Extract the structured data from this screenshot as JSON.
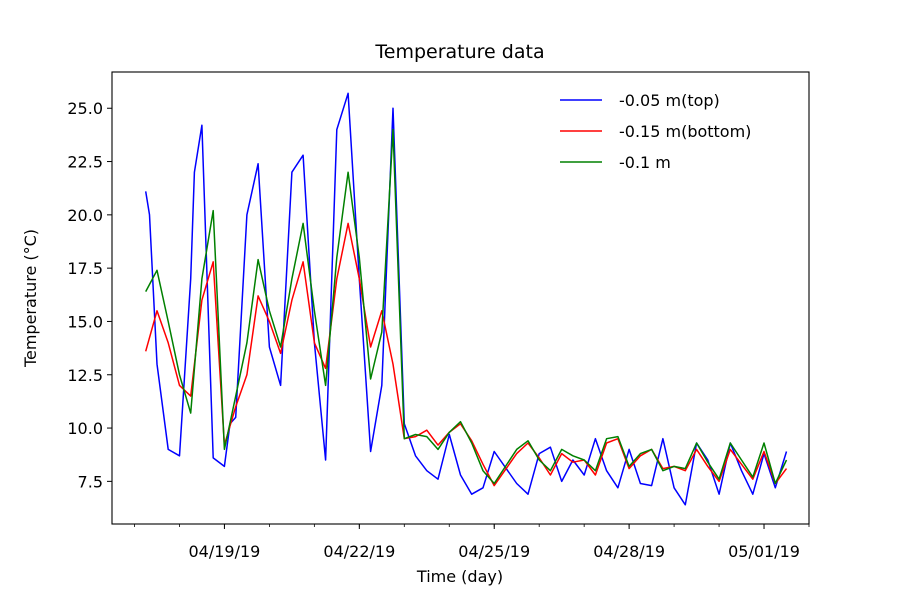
{
  "chart_data": {
    "type": "line",
    "title": "Temperature data",
    "xlabel": "Time (day)",
    "ylabel": "Temperature (°C)",
    "xlim": [
      "2019-04-16T12:00",
      "2019-05-02T00:00"
    ],
    "ylim": [
      5.5,
      26.7
    ],
    "x_ticks": [
      "04/19/19",
      "04/22/19",
      "04/25/19",
      "04/28/19",
      "05/01/19"
    ],
    "y_ticks": [
      "7.5",
      "10.0",
      "12.5",
      "15.0",
      "17.5",
      "20.0",
      "22.5",
      "25.0"
    ],
    "legend_position": "upper-right",
    "grid": false,
    "series": [
      {
        "name": "-0.05 m(top)",
        "color": "#0000ff",
        "x": [
          "2019-04-17T06:00",
          "2019-04-17T08:00",
          "2019-04-17T12:00",
          "2019-04-17T18:00",
          "2019-04-18T00:00",
          "2019-04-18T06:00",
          "2019-04-18T08:00",
          "2019-04-18T12:00",
          "2019-04-18T18:00",
          "2019-04-19T00:00",
          "2019-04-19T03:00",
          "2019-04-19T06:00",
          "2019-04-19T12:00",
          "2019-04-19T18:00",
          "2019-04-20T00:00",
          "2019-04-20T06:00",
          "2019-04-20T12:00",
          "2019-04-20T18:00",
          "2019-04-21T00:00",
          "2019-04-21T06:00",
          "2019-04-21T12:00",
          "2019-04-21T18:00",
          "2019-04-22T00:00",
          "2019-04-22T06:00",
          "2019-04-22T12:00",
          "2019-04-22T18:00",
          "2019-04-23T00:00",
          "2019-04-23T06:00",
          "2019-04-23T12:00",
          "2019-04-23T18:00",
          "2019-04-24T00:00",
          "2019-04-24T06:00",
          "2019-04-24T12:00",
          "2019-04-24T18:00",
          "2019-04-25T00:00",
          "2019-04-25T12:00",
          "2019-04-25T18:00",
          "2019-04-26T00:00",
          "2019-04-26T06:00",
          "2019-04-26T12:00",
          "2019-04-26T18:00",
          "2019-04-27T00:00",
          "2019-04-27T06:00",
          "2019-04-27T12:00",
          "2019-04-27T18:00",
          "2019-04-28T00:00",
          "2019-04-28T06:00",
          "2019-04-28T12:00",
          "2019-04-28T18:00",
          "2019-04-29T00:00",
          "2019-04-29T06:00",
          "2019-04-29T12:00",
          "2019-04-29T18:00",
          "2019-04-30T00:00",
          "2019-04-30T06:00",
          "2019-04-30T12:00",
          "2019-04-30T18:00",
          "2019-05-01T00:00",
          "2019-05-01T06:00",
          "2019-05-01T12:00"
        ],
        "values": [
          21.1,
          20.0,
          13.0,
          9.0,
          8.7,
          17.0,
          22.0,
          24.2,
          8.6,
          8.2,
          10.2,
          10.5,
          20.0,
          22.4,
          13.8,
          12.0,
          22.0,
          22.8,
          14.0,
          8.5,
          24.0,
          25.7,
          17.0,
          8.9,
          12.0,
          25.0,
          10.2,
          8.7,
          8.0,
          7.6,
          9.7,
          7.8,
          6.9,
          7.2,
          8.9,
          7.4,
          6.9,
          8.8,
          9.1,
          7.5,
          8.5,
          7.8,
          9.5,
          8.0,
          7.2,
          9.0,
          7.4,
          7.3,
          9.5,
          7.2,
          6.4,
          9.3,
          8.5,
          6.9,
          9.3,
          8.0,
          6.9,
          8.8,
          7.2,
          8.9
        ]
      },
      {
        "name": "-0.15 m(bottom)",
        "color": "#ff0000",
        "x": [
          "2019-04-17T06:00",
          "2019-04-17T12:00",
          "2019-04-17T18:00",
          "2019-04-18T00:00",
          "2019-04-18T06:00",
          "2019-04-18T12:00",
          "2019-04-18T18:00",
          "2019-04-19T00:00",
          "2019-04-19T06:00",
          "2019-04-19T12:00",
          "2019-04-19T18:00",
          "2019-04-20T00:00",
          "2019-04-20T06:00",
          "2019-04-20T12:00",
          "2019-04-20T18:00",
          "2019-04-21T00:00",
          "2019-04-21T06:00",
          "2019-04-21T12:00",
          "2019-04-21T18:00",
          "2019-04-22T00:00",
          "2019-04-22T06:00",
          "2019-04-22T12:00",
          "2019-04-22T18:00",
          "2019-04-23T00:00",
          "2019-04-23T06:00",
          "2019-04-23T12:00",
          "2019-04-23T18:00",
          "2019-04-24T00:00",
          "2019-04-24T06:00",
          "2019-04-24T12:00",
          "2019-04-24T18:00",
          "2019-04-25T00:00",
          "2019-04-25T12:00",
          "2019-04-25T18:00",
          "2019-04-26T00:00",
          "2019-04-26T06:00",
          "2019-04-26T12:00",
          "2019-04-26T18:00",
          "2019-04-27T00:00",
          "2019-04-27T06:00",
          "2019-04-27T12:00",
          "2019-04-27T18:00",
          "2019-04-28T00:00",
          "2019-04-28T06:00",
          "2019-04-28T12:00",
          "2019-04-28T18:00",
          "2019-04-29T00:00",
          "2019-04-29T06:00",
          "2019-04-29T12:00",
          "2019-04-29T18:00",
          "2019-04-30T00:00",
          "2019-04-30T06:00",
          "2019-04-30T12:00",
          "2019-04-30T18:00",
          "2019-05-01T00:00",
          "2019-05-01T06:00",
          "2019-05-01T12:00"
        ],
        "values": [
          13.6,
          15.5,
          14.0,
          12.0,
          11.5,
          16.0,
          17.8,
          9.2,
          11.0,
          12.5,
          16.2,
          15.0,
          13.5,
          16.0,
          17.8,
          14.0,
          12.8,
          17.0,
          19.6,
          17.0,
          13.8,
          15.5,
          13.0,
          9.5,
          9.6,
          9.9,
          9.2,
          9.8,
          10.2,
          9.4,
          8.3,
          7.3,
          8.8,
          9.3,
          8.6,
          7.8,
          8.8,
          8.4,
          8.5,
          7.8,
          9.3,
          9.5,
          8.1,
          8.7,
          9.0,
          8.1,
          8.2,
          8.0,
          9.0,
          8.2,
          7.5,
          9.0,
          8.3,
          7.6,
          8.9,
          7.4,
          8.1
        ]
      },
      {
        "name": "-0.1 m",
        "color": "#008000",
        "x": [
          "2019-04-17T06:00",
          "2019-04-17T12:00",
          "2019-04-17T18:00",
          "2019-04-18T00:00",
          "2019-04-18T06:00",
          "2019-04-18T12:00",
          "2019-04-18T18:00",
          "2019-04-19T00:00",
          "2019-04-19T06:00",
          "2019-04-19T12:00",
          "2019-04-19T18:00",
          "2019-04-20T00:00",
          "2019-04-20T06:00",
          "2019-04-20T12:00",
          "2019-04-20T18:00",
          "2019-04-21T00:00",
          "2019-04-21T06:00",
          "2019-04-21T12:00",
          "2019-04-21T18:00",
          "2019-04-22T00:00",
          "2019-04-22T06:00",
          "2019-04-22T12:00",
          "2019-04-22T18:00",
          "2019-04-23T00:00",
          "2019-04-23T06:00",
          "2019-04-23T12:00",
          "2019-04-23T18:00",
          "2019-04-24T00:00",
          "2019-04-24T06:00",
          "2019-04-24T12:00",
          "2019-04-24T18:00",
          "2019-04-25T00:00",
          "2019-04-25T12:00",
          "2019-04-25T18:00",
          "2019-04-26T00:00",
          "2019-04-26T06:00",
          "2019-04-26T12:00",
          "2019-04-26T18:00",
          "2019-04-27T00:00",
          "2019-04-27T06:00",
          "2019-04-27T12:00",
          "2019-04-27T18:00",
          "2019-04-28T00:00",
          "2019-04-28T06:00",
          "2019-04-28T12:00",
          "2019-04-28T18:00",
          "2019-04-29T00:00",
          "2019-04-29T06:00",
          "2019-04-29T12:00",
          "2019-04-29T18:00",
          "2019-04-30T00:00",
          "2019-04-30T06:00",
          "2019-04-30T12:00",
          "2019-04-30T18:00",
          "2019-05-01T00:00",
          "2019-05-01T06:00",
          "2019-05-01T12:00"
        ],
        "values": [
          16.4,
          17.4,
          15.0,
          12.5,
          10.7,
          17.0,
          20.2,
          9.0,
          11.5,
          14.0,
          17.9,
          15.5,
          13.8,
          17.0,
          19.6,
          15.5,
          12.0,
          18.0,
          22.0,
          18.0,
          12.3,
          14.5,
          24.0,
          9.5,
          9.7,
          9.6,
          9.0,
          9.8,
          10.3,
          9.3,
          8.0,
          7.4,
          9.0,
          9.4,
          8.5,
          8.0,
          9.0,
          8.7,
          8.5,
          8.0,
          9.5,
          9.6,
          8.2,
          8.8,
          9.0,
          8.0,
          8.2,
          8.1,
          9.3,
          8.4,
          7.6,
          9.3,
          8.5,
          7.7,
          9.3,
          7.4,
          8.5
        ]
      }
    ]
  }
}
